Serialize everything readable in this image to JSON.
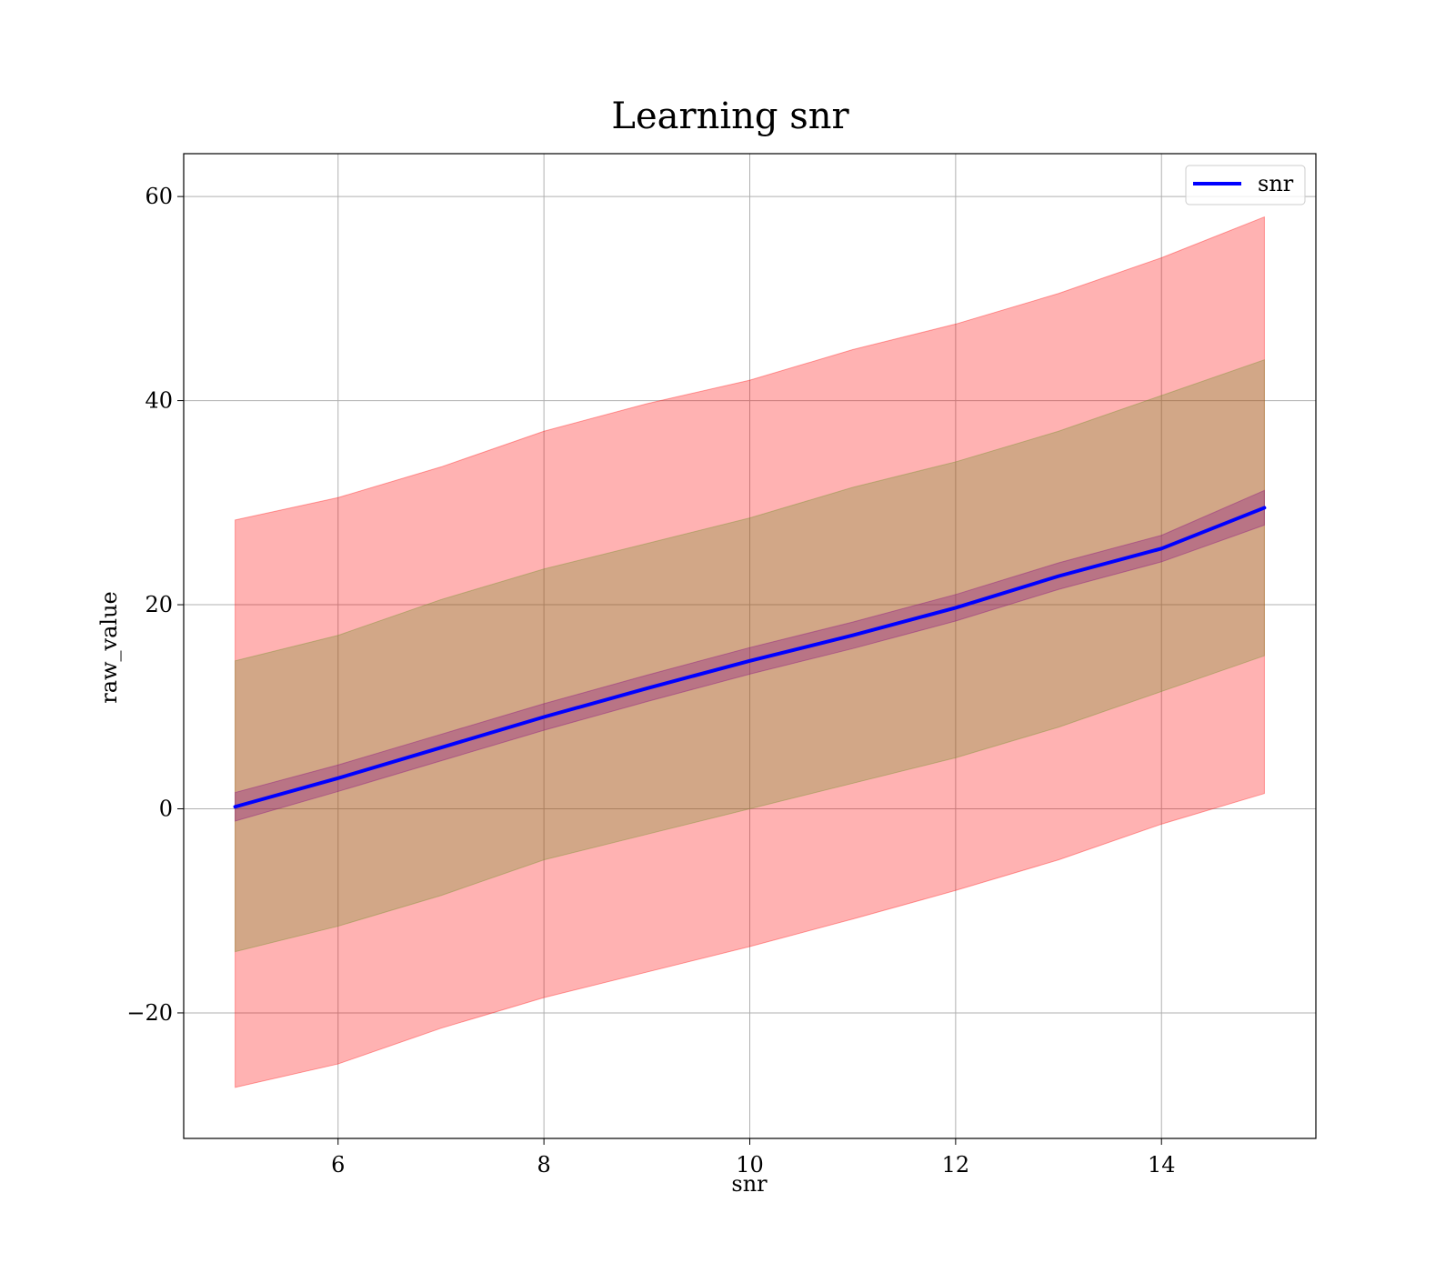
{
  "chart_data": {
    "type": "line",
    "title": "Learning snr",
    "xlabel": "snr",
    "ylabel": "raw_value",
    "xlim": [
      4.5,
      15.5
    ],
    "ylim": [
      -32.3,
      64.2
    ],
    "x_ticks": [
      6,
      8,
      10,
      12,
      14
    ],
    "y_ticks": [
      -20,
      0,
      20,
      40,
      60
    ],
    "grid": true,
    "legend_position": "top-right",
    "series": [
      {
        "name": "snr",
        "color": "#0000ff",
        "x": [
          5,
          6,
          7,
          8,
          9,
          10,
          11,
          12,
          13,
          14,
          15
        ],
        "y": [
          0.2,
          3.0,
          6.0,
          9.0,
          11.8,
          14.5,
          17.0,
          19.7,
          22.8,
          25.5,
          29.5
        ]
      }
    ],
    "bands": [
      {
        "color": "#ff0000",
        "opacity": 0.3,
        "x": [
          5,
          6,
          7,
          8,
          9,
          10,
          11,
          12,
          13,
          14,
          15
        ],
        "lower": [
          -27.3,
          -25.0,
          -21.5,
          -18.5,
          -16.0,
          -13.5,
          -10.8,
          -8.0,
          -5.0,
          -1.5,
          1.5
        ],
        "upper": [
          28.3,
          30.5,
          33.5,
          37.0,
          39.7,
          42.0,
          45.0,
          47.5,
          50.5,
          54.0,
          58.0
        ]
      },
      {
        "color": "#6b8e23",
        "opacity": 0.3,
        "x": [
          5,
          6,
          7,
          8,
          9,
          10,
          11,
          12,
          13,
          14,
          15
        ],
        "lower": [
          -14.0,
          -11.5,
          -8.5,
          -5.0,
          -2.5,
          0.0,
          2.5,
          5.0,
          8.0,
          11.5,
          15.0
        ],
        "upper": [
          14.5,
          17.0,
          20.5,
          23.5,
          26.0,
          28.5,
          31.5,
          34.0,
          37.0,
          40.5,
          44.0
        ]
      },
      {
        "color": "#800080",
        "opacity": 0.3,
        "x": [
          5,
          6,
          7,
          8,
          9,
          10,
          11,
          12,
          13,
          14,
          15
        ],
        "lower": [
          -1.2,
          1.7,
          4.7,
          7.7,
          10.5,
          13.2,
          15.7,
          18.4,
          21.5,
          24.2,
          27.8
        ],
        "upper": [
          1.6,
          4.3,
          7.3,
          10.3,
          13.1,
          15.8,
          18.3,
          21.0,
          24.1,
          26.8,
          31.2
        ]
      }
    ]
  }
}
